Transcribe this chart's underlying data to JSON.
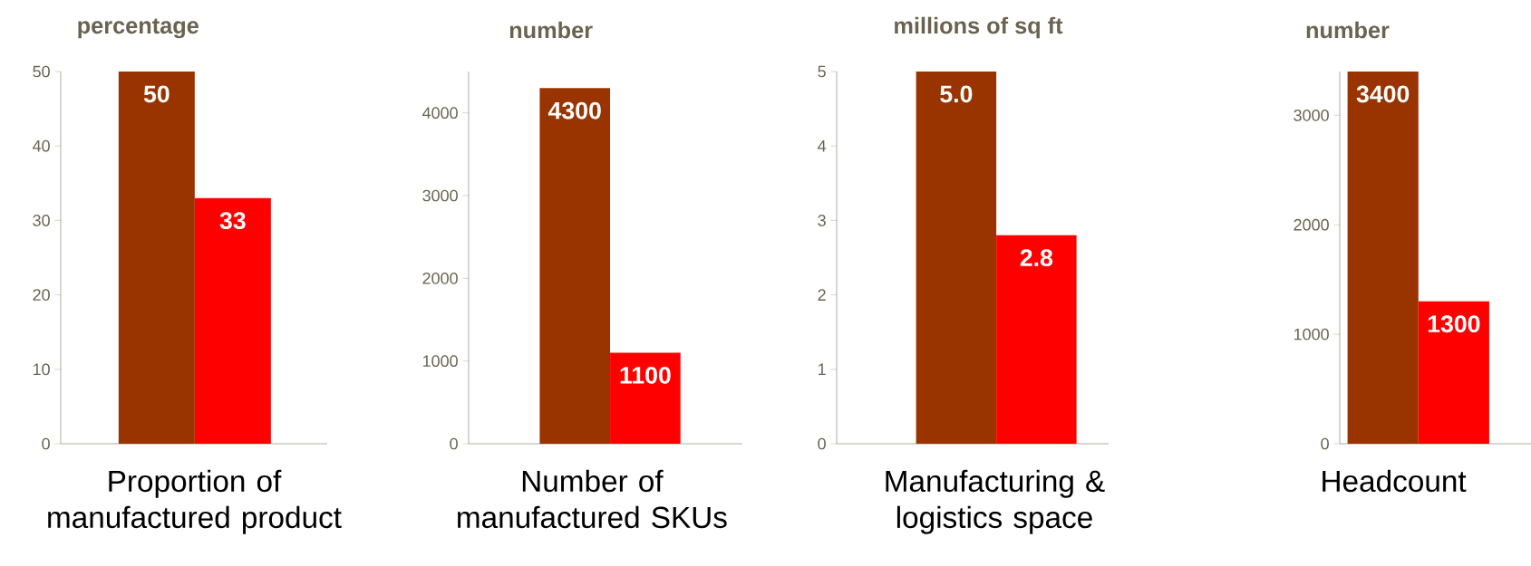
{
  "chart_data": [
    {
      "type": "bar",
      "ylabel": "percentage",
      "xlabel": "Proportion of manufactured product",
      "categories": [
        null,
        null
      ],
      "values": [
        50,
        33
      ],
      "colors": [
        "#993300",
        "#ff0000"
      ],
      "ylim": [
        0,
        50
      ],
      "yticks": [
        0,
        10,
        20,
        30,
        40,
        50
      ],
      "data_labels": true
    },
    {
      "type": "bar",
      "ylabel": "number",
      "xlabel": "Number of manufactured SKUs",
      "categories": [
        null,
        null
      ],
      "values": [
        4300,
        1100
      ],
      "colors": [
        "#993300",
        "#ff0000"
      ],
      "ylim": [
        0,
        4500
      ],
      "yticks": [
        0,
        1000,
        2000,
        3000,
        4000
      ],
      "data_labels": true
    },
    {
      "type": "bar",
      "ylabel": "millions of sq ft",
      "xlabel": "Manufacturing & logistics space",
      "categories": [
        null,
        null
      ],
      "values": [
        5.0,
        2.8
      ],
      "value_labels": [
        "5.0",
        "2.8"
      ],
      "colors": [
        "#993300",
        "#ff0000"
      ],
      "ylim": [
        0,
        5
      ],
      "yticks": [
        0,
        1,
        2,
        3,
        4,
        5
      ]
    },
    {
      "type": "bar",
      "ylabel": "number",
      "xlabel": "Headcount",
      "categories": [
        null,
        null
      ],
      "values": [
        3400,
        1300
      ],
      "colors": [
        "#993300",
        "#ff0000"
      ],
      "ylim": [
        0,
        3400
      ],
      "yticks": [
        0,
        1000,
        2000,
        3000
      ],
      "data_labels": true
    }
  ]
}
